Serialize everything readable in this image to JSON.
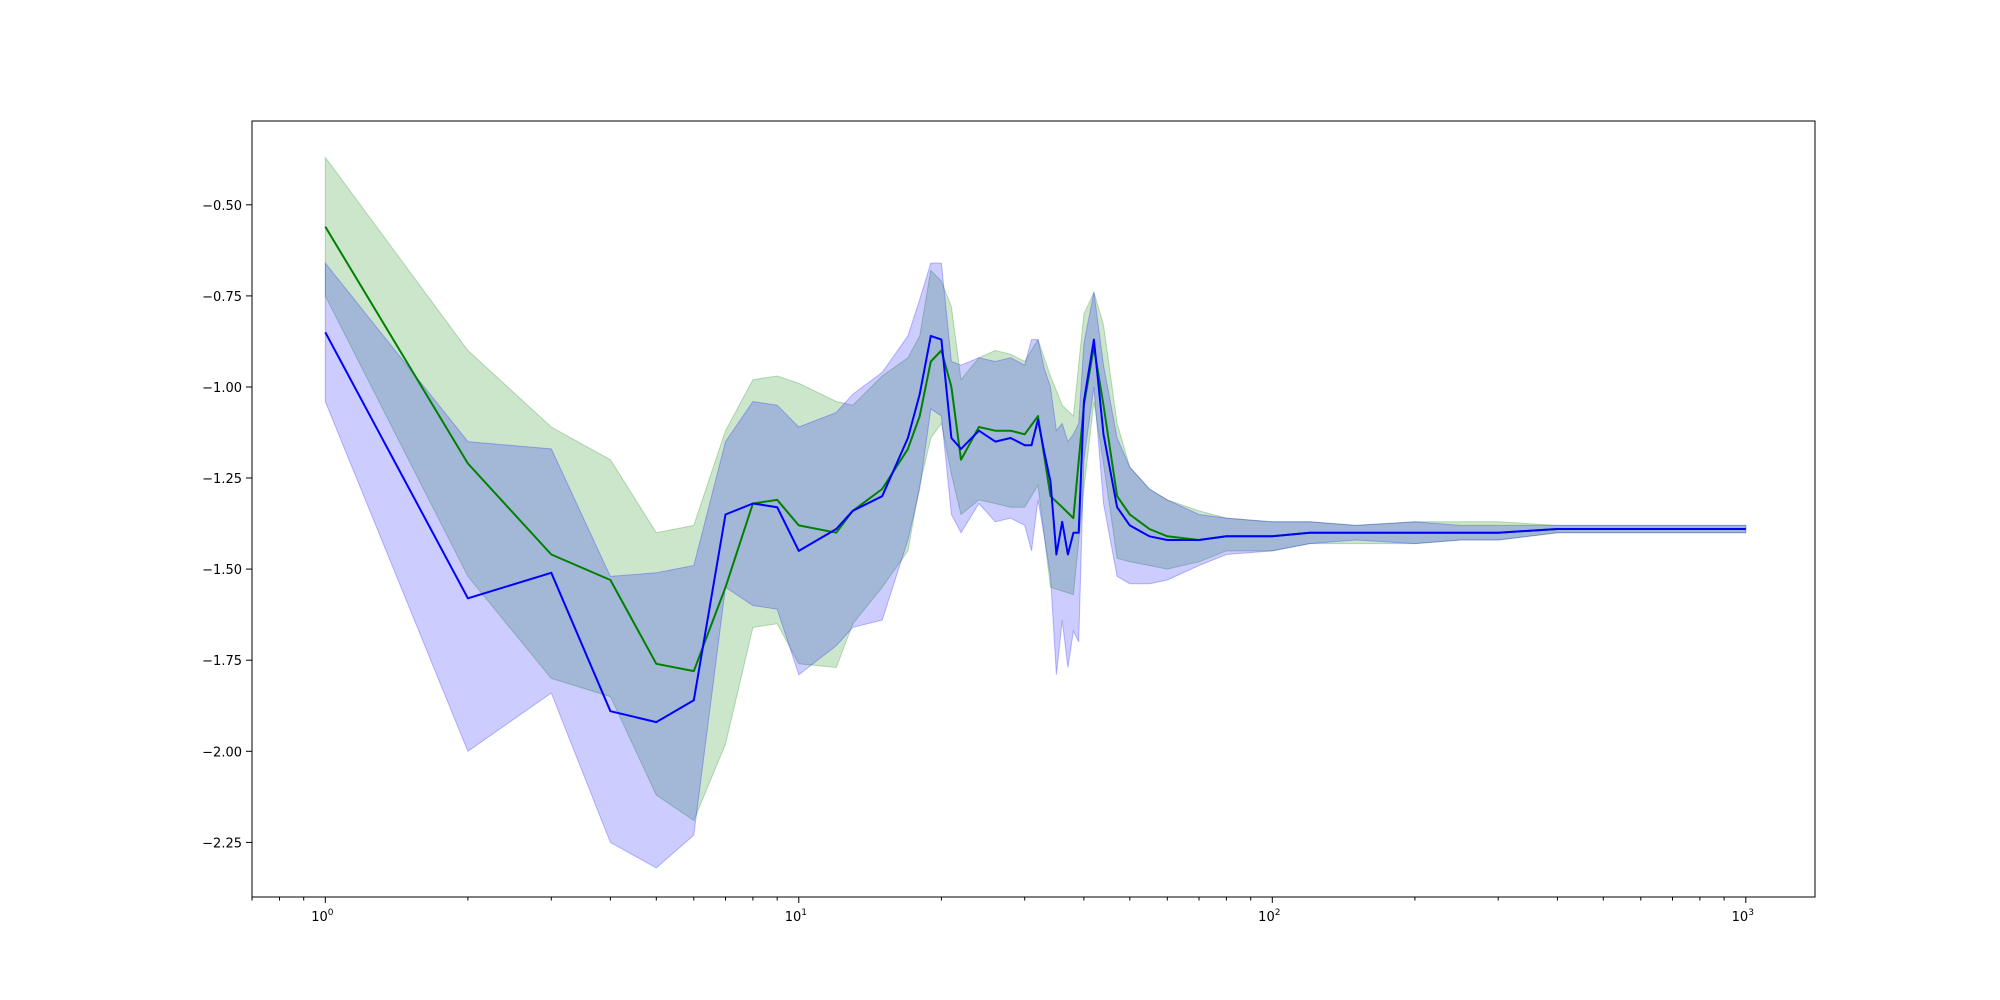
{
  "colors": {
    "background": "#ffffff",
    "green_line": "#008000",
    "green_band": "#008000",
    "blue_line": "#0000ff",
    "blue_band": "#0000ff"
  },
  "chart_data": {
    "type": "line",
    "title": "",
    "xlabel": "",
    "ylabel": "",
    "xscale": "log",
    "xlim": [
      0.7,
      1400
    ],
    "ylim": [
      -2.4,
      -0.27
    ],
    "grid": false,
    "legend": "none",
    "x_ticks": [
      {
        "value": 1,
        "base": "10",
        "exp": "0"
      },
      {
        "value": 10,
        "base": "10",
        "exp": "1"
      },
      {
        "value": 100,
        "base": "10",
        "exp": "2"
      },
      {
        "value": 1000,
        "base": "10",
        "exp": "3"
      }
    ],
    "y_ticks": [
      {
        "value": -0.5,
        "label": "−0.50"
      },
      {
        "value": -0.75,
        "label": "−0.75"
      },
      {
        "value": -1.0,
        "label": "−1.00"
      },
      {
        "value": -1.25,
        "label": "−1.25"
      },
      {
        "value": -1.5,
        "label": "−1.50"
      },
      {
        "value": -1.75,
        "label": "−1.75"
      },
      {
        "value": -2.0,
        "label": "−2.00"
      },
      {
        "value": -2.25,
        "label": "−2.25"
      }
    ],
    "series": [
      {
        "key": "green",
        "line_color": "#008000",
        "band_color": "#008000",
        "band_opacity": 0.2,
        "x": [
          1,
          2,
          3,
          4,
          5,
          6,
          7,
          8,
          9,
          10,
          12,
          13,
          15,
          17,
          18,
          19,
          20,
          21,
          22,
          24,
          26,
          28,
          30,
          32,
          34,
          36,
          38,
          40,
          42,
          44,
          47,
          50,
          55,
          60,
          70,
          80,
          100,
          120,
          150,
          200,
          250,
          300,
          400,
          500,
          700,
          1000
        ],
        "y": [
          -0.56,
          -1.21,
          -1.46,
          -1.53,
          -1.76,
          -1.78,
          -1.55,
          -1.32,
          -1.31,
          -1.38,
          -1.4,
          -1.34,
          -1.28,
          -1.17,
          -1.08,
          -0.93,
          -0.9,
          -1.0,
          -1.2,
          -1.11,
          -1.12,
          -1.12,
          -1.13,
          -1.08,
          -1.3,
          -1.33,
          -1.36,
          -1.05,
          -0.89,
          -1.05,
          -1.3,
          -1.35,
          -1.39,
          -1.41,
          -1.42,
          -1.41,
          -1.41,
          -1.4,
          -1.4,
          -1.4,
          -1.4,
          -1.4,
          -1.39,
          -1.39,
          -1.39,
          -1.39
        ],
        "upper": [
          -0.37,
          -0.9,
          -1.11,
          -1.2,
          -1.4,
          -1.38,
          -1.12,
          -0.98,
          -0.97,
          -0.99,
          -1.04,
          -1.05,
          -0.97,
          -0.92,
          -0.86,
          -0.68,
          -0.71,
          -0.78,
          -0.98,
          -0.92,
          -0.9,
          -0.91,
          -0.93,
          -0.87,
          -0.97,
          -1.05,
          -1.08,
          -0.8,
          -0.74,
          -0.83,
          -1.1,
          -1.22,
          -1.28,
          -1.31,
          -1.34,
          -1.36,
          -1.37,
          -1.37,
          -1.38,
          -1.37,
          -1.37,
          -1.37,
          -1.38,
          -1.38,
          -1.38,
          -1.38
        ],
        "lower": [
          -0.75,
          -1.52,
          -1.8,
          -1.85,
          -2.12,
          -2.19,
          -1.98,
          -1.66,
          -1.65,
          -1.76,
          -1.77,
          -1.65,
          -1.55,
          -1.45,
          -1.27,
          -1.14,
          -1.1,
          -1.24,
          -1.35,
          -1.31,
          -1.32,
          -1.33,
          -1.33,
          -1.27,
          -1.55,
          -1.56,
          -1.57,
          -1.28,
          -1.04,
          -1.21,
          -1.47,
          -1.48,
          -1.49,
          -1.5,
          -1.48,
          -1.45,
          -1.45,
          -1.43,
          -1.43,
          -1.43,
          -1.42,
          -1.42,
          -1.4,
          -1.4,
          -1.4,
          -1.4
        ]
      },
      {
        "key": "blue",
        "line_color": "#0000ff",
        "band_color": "#0000ff",
        "band_opacity": 0.2,
        "x": [
          1,
          2,
          3,
          4,
          5,
          6,
          7,
          8,
          9,
          10,
          12,
          13,
          15,
          17,
          18,
          19,
          20,
          21,
          22,
          24,
          26,
          28,
          30,
          31,
          32,
          33,
          34,
          35,
          36,
          37,
          38,
          39,
          40,
          42,
          44,
          47,
          50,
          55,
          60,
          70,
          80,
          100,
          120,
          150,
          200,
          250,
          300,
          400,
          500,
          700,
          1000
        ],
        "y": [
          -0.85,
          -1.58,
          -1.51,
          -1.89,
          -1.92,
          -1.86,
          -1.35,
          -1.32,
          -1.33,
          -1.45,
          -1.39,
          -1.34,
          -1.3,
          -1.14,
          -1.02,
          -0.86,
          -0.87,
          -1.14,
          -1.17,
          -1.12,
          -1.15,
          -1.14,
          -1.16,
          -1.16,
          -1.09,
          -1.18,
          -1.26,
          -1.46,
          -1.37,
          -1.46,
          -1.4,
          -1.4,
          -1.04,
          -0.87,
          -1.13,
          -1.33,
          -1.38,
          -1.41,
          -1.42,
          -1.42,
          -1.41,
          -1.41,
          -1.4,
          -1.4,
          -1.4,
          -1.4,
          -1.4,
          -1.39,
          -1.39,
          -1.39,
          -1.39
        ],
        "upper": [
          -0.66,
          -1.15,
          -1.17,
          -1.52,
          -1.51,
          -1.49,
          -1.15,
          -1.04,
          -1.05,
          -1.11,
          -1.07,
          -1.02,
          -0.96,
          -0.86,
          -0.76,
          -0.66,
          -0.66,
          -0.93,
          -0.94,
          -0.92,
          -0.93,
          -0.92,
          -0.94,
          -0.87,
          -0.87,
          -0.95,
          -1.0,
          -1.12,
          -1.1,
          -1.15,
          -1.13,
          -1.1,
          -0.88,
          -0.74,
          -0.94,
          -1.14,
          -1.22,
          -1.28,
          -1.31,
          -1.35,
          -1.36,
          -1.37,
          -1.37,
          -1.38,
          -1.37,
          -1.38,
          -1.38,
          -1.38,
          -1.38,
          -1.38,
          -1.38
        ],
        "lower": [
          -1.04,
          -2.0,
          -1.84,
          -2.25,
          -2.32,
          -2.23,
          -1.55,
          -1.6,
          -1.61,
          -1.79,
          -1.71,
          -1.66,
          -1.64,
          -1.42,
          -1.28,
          -1.06,
          -1.08,
          -1.35,
          -1.4,
          -1.32,
          -1.37,
          -1.36,
          -1.38,
          -1.45,
          -1.31,
          -1.41,
          -1.52,
          -1.79,
          -1.64,
          -1.77,
          -1.67,
          -1.7,
          -1.2,
          -1.0,
          -1.32,
          -1.52,
          -1.54,
          -1.54,
          -1.53,
          -1.49,
          -1.46,
          -1.45,
          -1.43,
          -1.42,
          -1.43,
          -1.42,
          -1.42,
          -1.4,
          -1.4,
          -1.4,
          -1.4
        ]
      }
    ]
  }
}
